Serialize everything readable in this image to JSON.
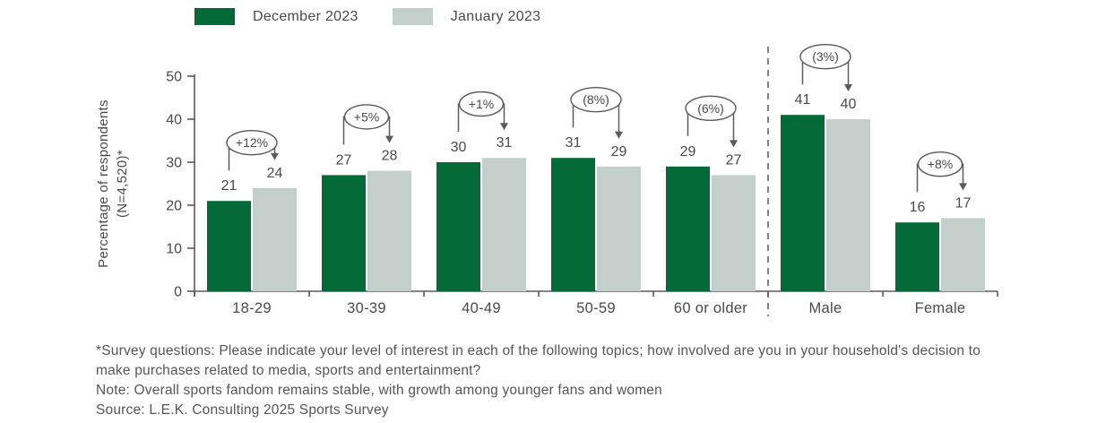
{
  "legend": [
    {
      "label": "December 2023",
      "color": "#046a38",
      "icon": "swatch-dark-green"
    },
    {
      "label": "January 2023",
      "color": "#c3cfca",
      "icon": "swatch-light-gray"
    }
  ],
  "y_axis": {
    "title_line1": "Percentage of respondents",
    "title_line2": "(N=4,520)*"
  },
  "chart_data": {
    "type": "bar",
    "title": "",
    "xlabel": "",
    "ylabel": "Percentage of respondents (N=4,520)*",
    "ylim": [
      0,
      50
    ],
    "yticks": [
      0,
      10,
      20,
      30,
      40,
      50
    ],
    "grid": false,
    "legend_position": "top",
    "categories": [
      "18-29",
      "30-39",
      "40-49",
      "50-59",
      "60 or older",
      "Male",
      "Female"
    ],
    "series": [
      {
        "name": "December 2023",
        "color": "#046a38",
        "values": [
          21,
          27,
          30,
          31,
          29,
          41,
          16
        ]
      },
      {
        "name": "January 2023",
        "color": "#c3cfca",
        "values": [
          24,
          28,
          31,
          29,
          27,
          40,
          17
        ]
      }
    ],
    "change_annotations": [
      "+12%",
      "+5%",
      "+1%",
      "(8%)",
      "(6%)",
      "(3%)",
      "+8%"
    ],
    "separator_after_category_index": 4,
    "axis_color": "#5a5a5a",
    "label_color": "#4a4a4a"
  },
  "footer": {
    "footnote": "*Survey questions: Please indicate your level of interest in each of the following topics; how involved are you in your household's decision to make purchases related to media, sports and entertainment?",
    "note": "Note: Overall sports fandom remains stable, with growth among younger fans and women",
    "source": "Source: L.E.K. Consulting 2025 Sports Survey"
  }
}
